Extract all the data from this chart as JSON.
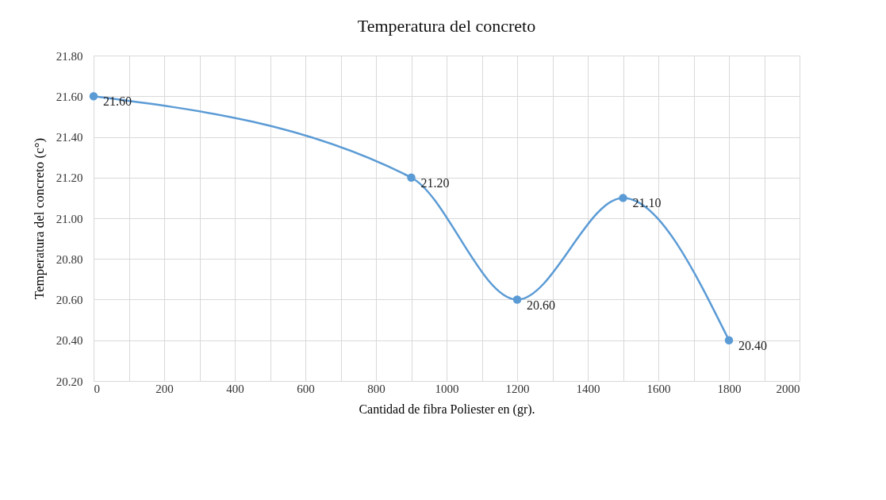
{
  "chart_data": {
    "type": "line",
    "title": "Temperatura del concreto",
    "xlabel": "Cantidad de fibra Poliester en (gr).",
    "ylabel": "Temperatura del concreto (c°)",
    "x": [
      0,
      900,
      1200,
      1500,
      1800
    ],
    "series": [
      {
        "color": "#5b9bd5",
        "values": [
          21.6,
          21.2,
          20.6,
          21.1,
          20.4
        ],
        "value_labels": [
          "21.60",
          "21.20",
          "20.60",
          "21.10",
          "20.40"
        ]
      }
    ],
    "xlim": [
      0,
      2000
    ],
    "xticks": [
      0,
      {
        "value": 100,
        "label": null
      },
      200,
      {
        "value": 300,
        "label": null
      },
      400,
      {
        "value": 500,
        "label": null
      },
      600,
      {
        "value": 700,
        "label": null
      },
      800,
      {
        "value": 900,
        "label": null
      },
      1000,
      {
        "value": 1100,
        "label": null
      },
      1200,
      {
        "value": 1300,
        "label": null
      },
      1400,
      {
        "value": 1500,
        "label": null
      },
      1600,
      {
        "value": 1700,
        "label": null
      },
      1800,
      {
        "value": 1900,
        "label": null
      },
      2000
    ],
    "ylim": [
      20.2,
      21.8
    ],
    "yticks": [
      {
        "value": 20.2,
        "label": "20.20"
      },
      {
        "value": 20.4,
        "label": "20.40"
      },
      {
        "value": 20.6,
        "label": "20.60"
      },
      {
        "value": 20.8,
        "label": "20.80"
      },
      {
        "value": 21.0,
        "label": "21.00"
      },
      {
        "value": 21.2,
        "label": "21.20"
      },
      {
        "value": 21.4,
        "label": "21.40"
      },
      {
        "value": 21.6,
        "label": "21.60"
      },
      {
        "value": 21.8,
        "label": "21.80"
      }
    ],
    "grid": true,
    "marker": "circle",
    "line_style": "solid"
  }
}
